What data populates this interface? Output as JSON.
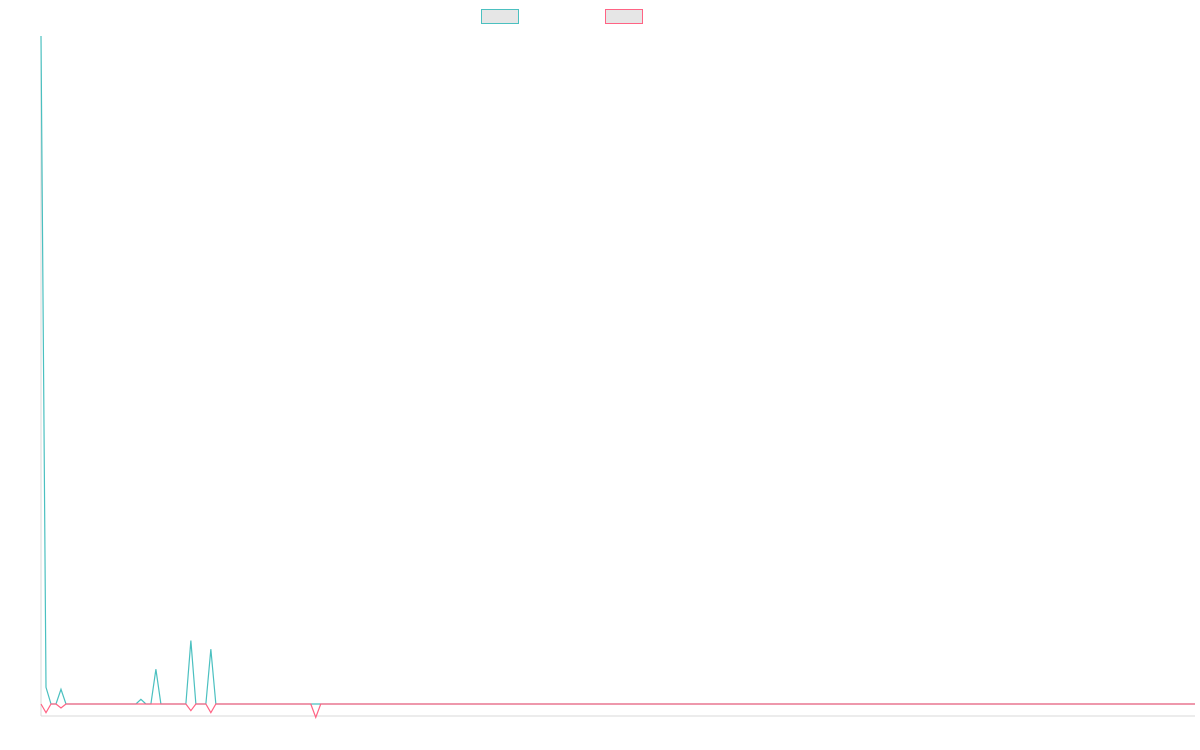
{
  "chart_data": {
    "type": "line",
    "title": "",
    "xlabel": "",
    "ylabel": "",
    "grid": false,
    "legend_position": "top",
    "point_count": 232,
    "series": [
      {
        "name": "",
        "color": "#4bc0c0",
        "spikes": [
          {
            "index": 0,
            "value": 100
          },
          {
            "index": 1,
            "value": 2.5
          },
          {
            "index": 2,
            "value": 0
          },
          {
            "index": 3,
            "value": 0
          },
          {
            "index": 4,
            "value": 2.2
          },
          {
            "index": 5,
            "value": 0
          },
          {
            "index": 19,
            "value": 0
          },
          {
            "index": 20,
            "value": 0.7
          },
          {
            "index": 21,
            "value": 0
          },
          {
            "index": 22,
            "value": 0
          },
          {
            "index": 23,
            "value": 5.2
          },
          {
            "index": 24,
            "value": 0
          },
          {
            "index": 29,
            "value": 0
          },
          {
            "index": 30,
            "value": 9.5
          },
          {
            "index": 31,
            "value": 0
          },
          {
            "index": 33,
            "value": 0
          },
          {
            "index": 34,
            "value": 8.2
          },
          {
            "index": 35,
            "value": 0
          }
        ]
      },
      {
        "name": "",
        "color": "#ff6384",
        "spikes": [
          {
            "index": 0,
            "value": 0
          },
          {
            "index": 1,
            "value": -1.3
          },
          {
            "index": 2,
            "value": 0
          },
          {
            "index": 3,
            "value": 0
          },
          {
            "index": 4,
            "value": -0.6
          },
          {
            "index": 5,
            "value": 0
          },
          {
            "index": 29,
            "value": 0
          },
          {
            "index": 30,
            "value": -1.0
          },
          {
            "index": 31,
            "value": 0
          },
          {
            "index": 33,
            "value": 0
          },
          {
            "index": 34,
            "value": -1.3
          },
          {
            "index": 35,
            "value": 0
          },
          {
            "index": 54,
            "value": 0
          },
          {
            "index": 55,
            "value": -2.0
          },
          {
            "index": 56,
            "value": 0
          }
        ]
      }
    ],
    "ylim": [
      -2,
      100
    ]
  }
}
